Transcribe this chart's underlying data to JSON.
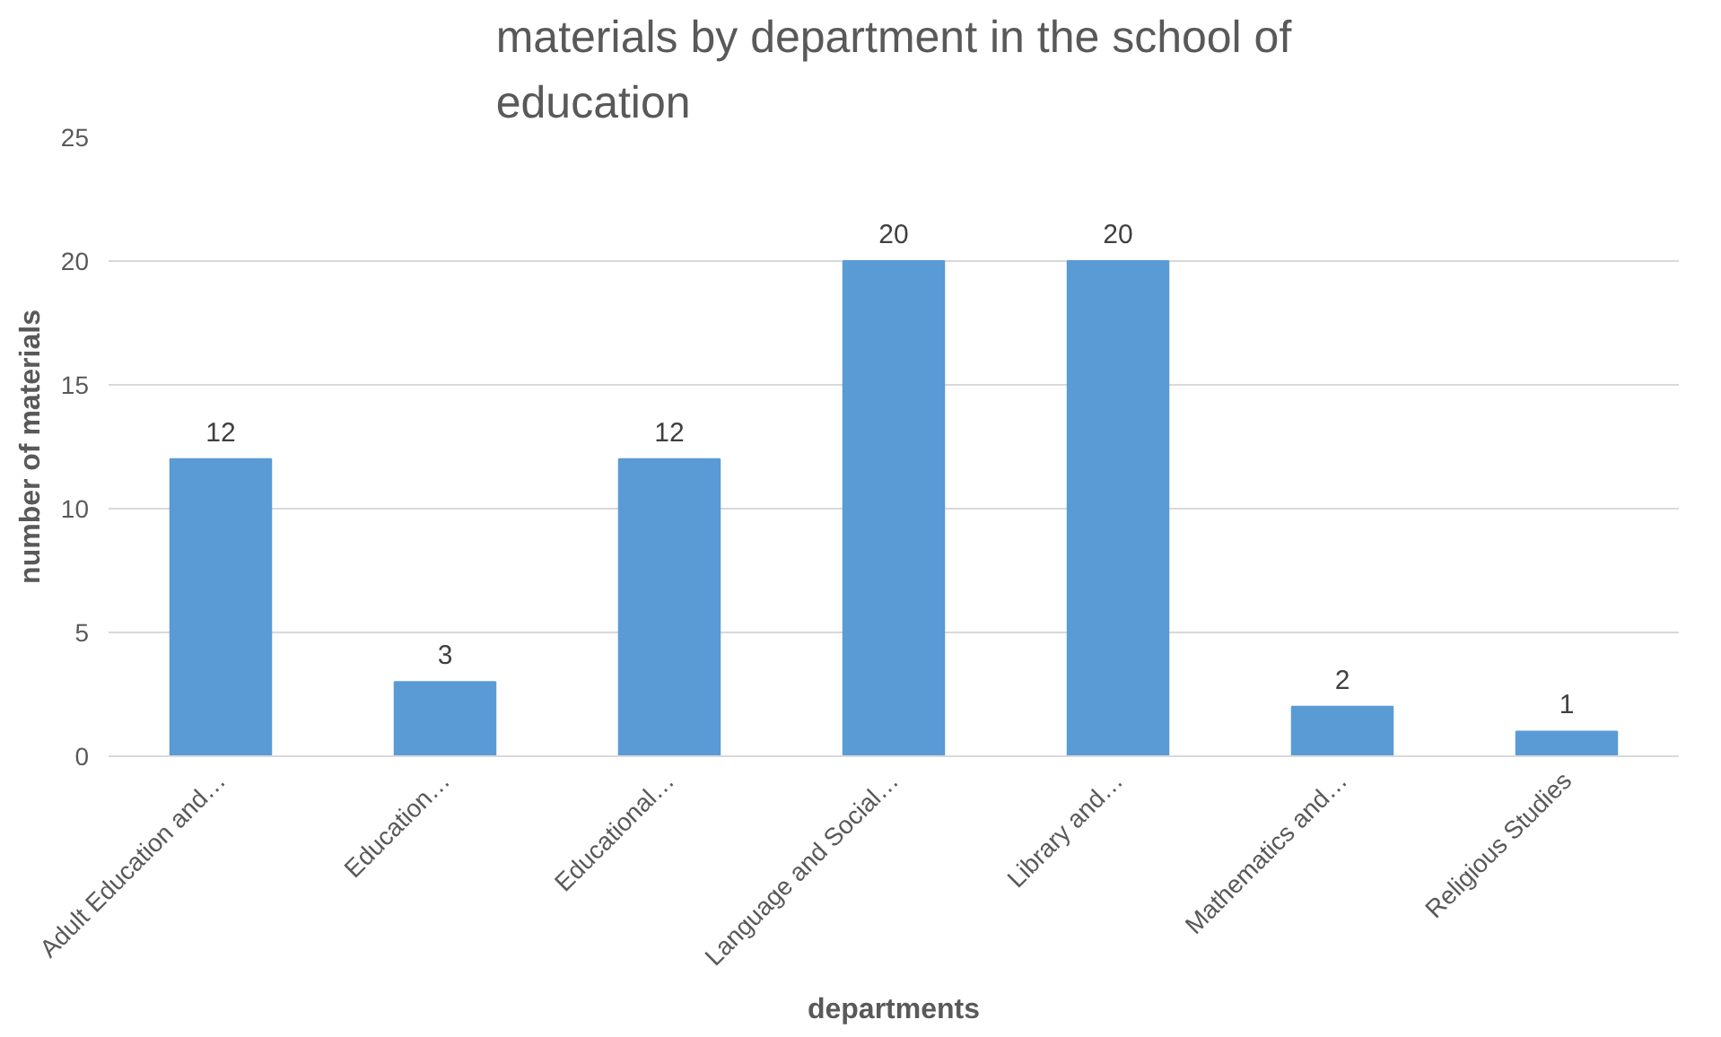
{
  "chart_data": {
    "type": "bar",
    "title": "materials by department in the school of education",
    "xlabel": "departments",
    "ylabel": "number of materials",
    "categories": [
      "Adult Education and…",
      "Education…",
      "Educational…",
      "Language and Social…",
      "Library and…",
      "Mathematics and…",
      "Religious Studies"
    ],
    "values": [
      12,
      3,
      12,
      20,
      20,
      2,
      1
    ],
    "color": "#5b9bd5",
    "ylim": [
      0,
      25
    ],
    "yticks": [
      0,
      5,
      10,
      15,
      20,
      25
    ],
    "grid": "y",
    "data_labels": true
  }
}
